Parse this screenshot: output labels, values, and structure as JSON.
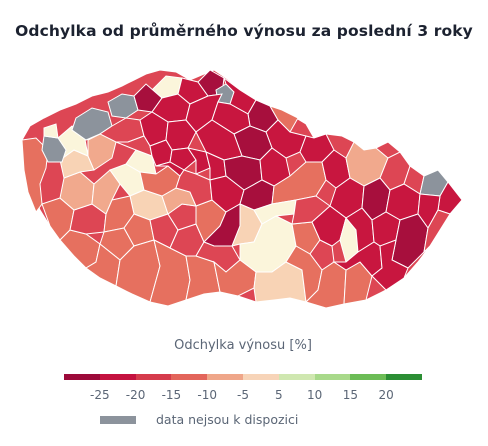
{
  "title": "Odchylka od průměrného výnosu za poslední 3 roky",
  "legend": {
    "title": "Odchylka výnosu [%]",
    "scale_colors": [
      "#9c0a3a",
      "#c4123f",
      "#d53b4c",
      "#e3655b",
      "#efa689",
      "#f7d4b8",
      "#fbf6dc",
      "#cfe7b0",
      "#a8d98a",
      "#6cbc56",
      "#2b8e34"
    ],
    "tick_labels": [
      "-25",
      "-20",
      "-15",
      "-10",
      "-5",
      "5",
      "10",
      "15",
      "20"
    ],
    "no_data": {
      "label": "data nejsou k dispozici",
      "color": "#8c939c"
    }
  },
  "map_colors": {
    "dark_red": "#a70f3d",
    "red": "#c8163f",
    "mid_red": "#dd4654",
    "salmon": "#e6705f",
    "light_salmon": "#f1a98d",
    "peach": "#f8d3b5",
    "cream": "#fbf5db",
    "grey": "#8c939c",
    "border": "#ffffff"
  }
}
